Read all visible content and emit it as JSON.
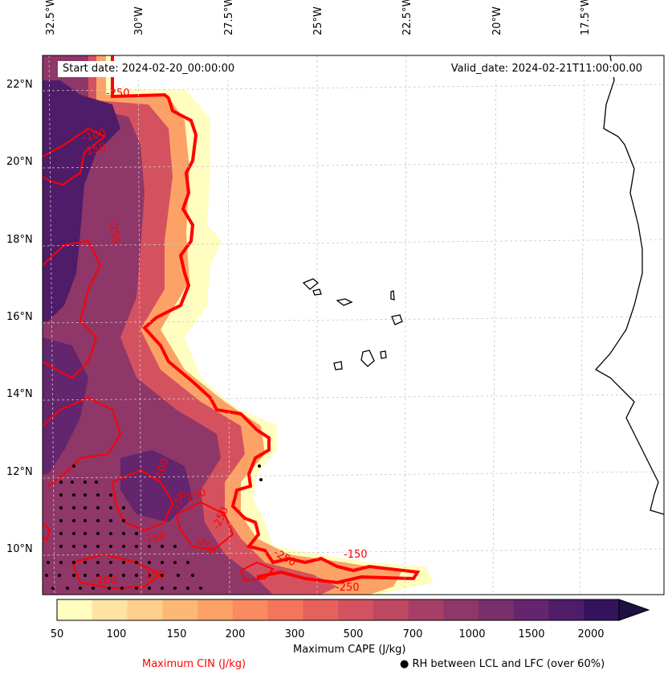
{
  "map": {
    "start_date": "Start date: 2024-02-20_00:00:00",
    "valid_date": "Valid_date: 2024-02-21T11:00:00.00",
    "lon_labels": [
      "32.5°W",
      "30°W",
      "27.5°W",
      "25°W",
      "22.5°W",
      "20°W",
      "17.5°W"
    ],
    "lat_labels": [
      "22°N",
      "20°N",
      "18°N",
      "16°N",
      "14°N",
      "12°N",
      "10°N"
    ],
    "cin_contour_labels": [
      "-250",
      "-100",
      "-150",
      "-250",
      "-100",
      "-150",
      "-250",
      "-250",
      "-250",
      "-150",
      "-100",
      "-150",
      "-250",
      "-250",
      "-150"
    ]
  },
  "colorbar": {
    "label": "Maximum CAPE (J/kg)",
    "ticks": [
      "50",
      "100",
      "150",
      "200",
      "300",
      "500",
      "700",
      "1000",
      "1500",
      "2000"
    ],
    "colors": [
      "#fffdbf",
      "#fee3a3",
      "#fecf8b",
      "#fdb877",
      "#fca267",
      "#fa8a5f",
      "#f3755c",
      "#e6615d",
      "#d4525f",
      "#bd4861",
      "#a63f66",
      "#8f3768",
      "#782f6b",
      "#63256d",
      "#4e1c69",
      "#35135c",
      "#1d113f"
    ]
  },
  "legend": {
    "cin_label": "Maximum CIN (J/kg)",
    "cin_color": "#ff0000",
    "rh_label": "RH between LCL and LFC (over 60%)"
  }
}
